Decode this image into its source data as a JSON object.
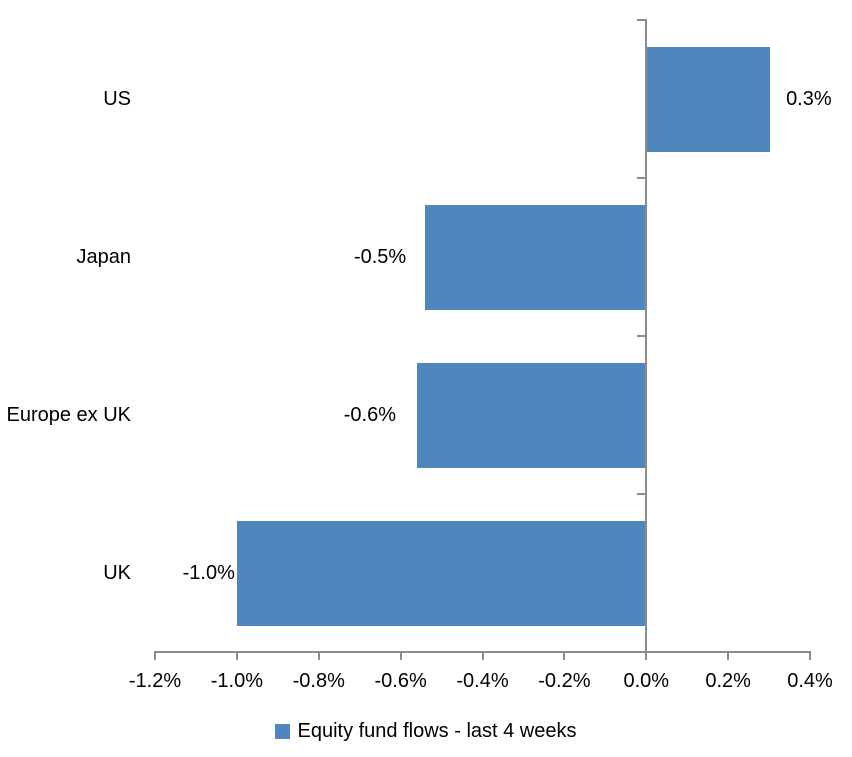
{
  "chart_data": {
    "type": "bar",
    "orientation": "horizontal",
    "title": "",
    "xlabel": "",
    "ylabel": "",
    "categories": [
      "US",
      "Japan",
      "Europe ex UK",
      "UK"
    ],
    "series": [
      {
        "name": "Equity fund flows - last 4 weeks",
        "values": [
          0.3,
          -0.54,
          -0.56,
          -1.0
        ],
        "value_labels": [
          "0.3%",
          "-0.5%",
          "-0.6%",
          "-1.0%"
        ]
      }
    ],
    "xlim": [
      -1.2,
      0.4
    ],
    "x_tick_values": [
      -1.2,
      -1.0,
      -0.8,
      -0.6,
      -0.4,
      -0.2,
      0.0,
      0.2,
      0.4
    ],
    "x_tick_labels": [
      "-1.2%",
      "-1.0%",
      "-0.8%",
      "-0.6%",
      "-0.4%",
      "-0.2%",
      "0.0%",
      "0.2%",
      "0.4%"
    ],
    "grid": false,
    "legend_position": "bottom",
    "colors": {
      "bar": "#4F86BD",
      "axis": "#8C8C8C",
      "text": "#000000",
      "background": "#FFFFFF"
    }
  },
  "legend": {
    "label": "Equity fund flows - last 4 weeks"
  }
}
